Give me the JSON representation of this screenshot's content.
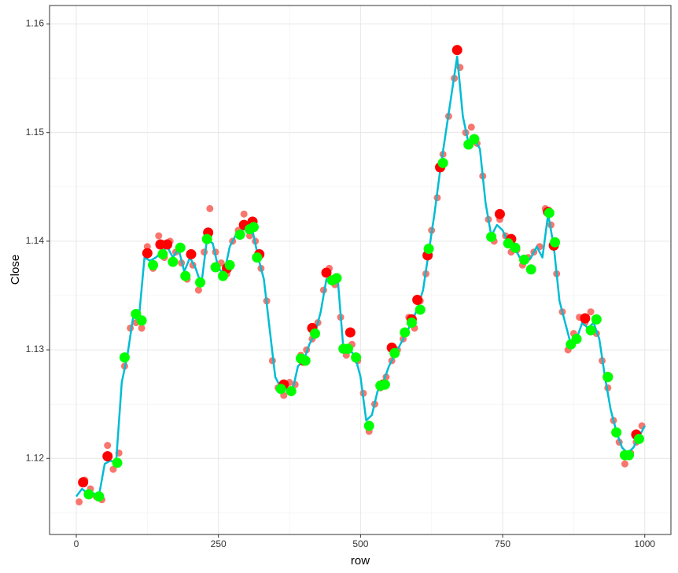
{
  "chart_data": {
    "type": "scatter",
    "xlabel": "row",
    "ylabel": "Close",
    "xlim": [
      -47,
      1046
    ],
    "ylim": [
      1.113,
      1.1617
    ],
    "xticks": [
      0,
      250,
      500,
      750,
      1000
    ],
    "yticks": [
      1.12,
      1.13,
      1.14,
      1.15,
      1.16
    ],
    "xminor": [
      125,
      375,
      625,
      875
    ],
    "yminor": [
      1.115,
      1.125,
      1.135,
      1.145,
      1.155
    ],
    "grid": true,
    "series": [
      {
        "mode": "points",
        "color": "#f8766d",
        "size": 4.5,
        "x": [
          5,
          15,
          25,
          35,
          45,
          55,
          65,
          75,
          85,
          95,
          105,
          115,
          125,
          135,
          145,
          155,
          165,
          175,
          185,
          195,
          205,
          215,
          225,
          235,
          245,
          255,
          265,
          275,
          285,
          295,
          305,
          315,
          325,
          335,
          345,
          355,
          365,
          375,
          385,
          395,
          405,
          415,
          425,
          435,
          445,
          455,
          465,
          475,
          485,
          495,
          505,
          515,
          525,
          535,
          545,
          555,
          565,
          575,
          585,
          595,
          605,
          615,
          625,
          635,
          645,
          655,
          665,
          675,
          685,
          695,
          705,
          715,
          725,
          735,
          745,
          755,
          765,
          775,
          785,
          795,
          805,
          815,
          825,
          835,
          845,
          855,
          865,
          875,
          885,
          895,
          905,
          915,
          925,
          935,
          945,
          955,
          965,
          975,
          985,
          995
        ],
        "values": [
          1.116,
          1.118,
          1.1172,
          1.1165,
          1.1162,
          1.1212,
          1.119,
          1.1205,
          1.1285,
          1.132,
          1.1325,
          1.132,
          1.1395,
          1.1375,
          1.1405,
          1.1385,
          1.14,
          1.139,
          1.138,
          1.1365,
          1.1378,
          1.1355,
          1.139,
          1.143,
          1.139,
          1.138,
          1.137,
          1.14,
          1.141,
          1.1425,
          1.1405,
          1.14,
          1.1375,
          1.1345,
          1.129,
          1.1265,
          1.1258,
          1.127,
          1.1268,
          1.1295,
          1.13,
          1.131,
          1.1325,
          1.1355,
          1.1375,
          1.136,
          1.133,
          1.1295,
          1.1305,
          1.129,
          1.126,
          1.1225,
          1.125,
          1.1265,
          1.1275,
          1.129,
          1.13,
          1.131,
          1.133,
          1.132,
          1.1345,
          1.137,
          1.141,
          1.144,
          1.148,
          1.1515,
          1.155,
          1.156,
          1.15,
          1.1505,
          1.149,
          1.146,
          1.142,
          1.14,
          1.142,
          1.1405,
          1.139,
          1.1392,
          1.1378,
          1.1385,
          1.139,
          1.1395,
          1.143,
          1.1415,
          1.137,
          1.1335,
          1.13,
          1.1315,
          1.133,
          1.1325,
          1.1335,
          1.1315,
          1.129,
          1.1265,
          1.1235,
          1.1215,
          1.1195,
          1.1205,
          1.1215,
          1.123
        ]
      },
      {
        "mode": "line",
        "color": "#00bcd4",
        "x": [
          0,
          10,
          20,
          30,
          40,
          50,
          60,
          70,
          80,
          90,
          100,
          110,
          120,
          130,
          140,
          150,
          160,
          170,
          180,
          190,
          200,
          210,
          220,
          230,
          240,
          250,
          260,
          270,
          280,
          290,
          300,
          310,
          320,
          330,
          340,
          350,
          360,
          370,
          380,
          390,
          400,
          410,
          420,
          430,
          440,
          450,
          460,
          470,
          480,
          490,
          500,
          510,
          520,
          530,
          540,
          550,
          560,
          570,
          580,
          590,
          600,
          610,
          620,
          630,
          640,
          650,
          660,
          670,
          680,
          690,
          700,
          710,
          720,
          730,
          740,
          750,
          760,
          770,
          780,
          790,
          800,
          810,
          820,
          830,
          840,
          850,
          860,
          870,
          880,
          890,
          900,
          910,
          920,
          930,
          940,
          950,
          960,
          970,
          980,
          990,
          1000
        ],
        "values": [
          1.1165,
          1.1172,
          1.1168,
          1.1168,
          1.1166,
          1.1195,
          1.1198,
          1.1196,
          1.127,
          1.1295,
          1.133,
          1.1328,
          1.1385,
          1.1382,
          1.1385,
          1.139,
          1.1395,
          1.1385,
          1.1393,
          1.1372,
          1.1385,
          1.1375,
          1.136,
          1.1402,
          1.1398,
          1.1375,
          1.137,
          1.1395,
          1.1405,
          1.141,
          1.1412,
          1.141,
          1.1385,
          1.1365,
          1.132,
          1.1275,
          1.1265,
          1.1265,
          1.1262,
          1.1285,
          1.129,
          1.1305,
          1.1315,
          1.1335,
          1.1365,
          1.1365,
          1.1365,
          1.13,
          1.13,
          1.1295,
          1.1275,
          1.1235,
          1.124,
          1.1262,
          1.127,
          1.1285,
          1.1295,
          1.1305,
          1.1315,
          1.1325,
          1.1338,
          1.1355,
          1.139,
          1.1425,
          1.1465,
          1.15,
          1.1535,
          1.157,
          1.1515,
          1.149,
          1.1495,
          1.1485,
          1.1435,
          1.1405,
          1.1415,
          1.141,
          1.1398,
          1.1395,
          1.1385,
          1.138,
          1.1385,
          1.1395,
          1.1385,
          1.1425,
          1.1395,
          1.1345,
          1.1325,
          1.1305,
          1.131,
          1.1325,
          1.132,
          1.1325,
          1.131,
          1.1275,
          1.1245,
          1.1225,
          1.121,
          1.1205,
          1.121,
          1.122,
          1.123
        ]
      },
      {
        "mode": "points",
        "color": "#ff0000",
        "size": 6.5,
        "x": [
          12,
          55,
          125,
          148,
          160,
          202,
          232,
          265,
          295,
          310,
          322,
          365,
          400,
          415,
          440,
          482,
          540,
          555,
          590,
          600,
          618,
          640,
          670,
          745,
          765,
          830,
          840,
          895,
          935,
          985
        ],
        "values": [
          1.1178,
          1.1202,
          1.1389,
          1.1397,
          1.1397,
          1.1388,
          1.1408,
          1.1375,
          1.1415,
          1.1418,
          1.1388,
          1.1268,
          1.129,
          1.132,
          1.1371,
          1.1316,
          1.1268,
          1.1302,
          1.1328,
          1.1346,
          1.1387,
          1.1468,
          1.1576,
          1.1425,
          1.1402,
          1.1427,
          1.1396,
          1.1329,
          1.1275,
          1.1222
        ]
      },
      {
        "mode": "points",
        "color": "#00ff00",
        "size": 6.5,
        "x": [
          22,
          40,
          72,
          85,
          105,
          115,
          135,
          152,
          170,
          183,
          192,
          218,
          230,
          245,
          258,
          270,
          288,
          305,
          312,
          318,
          360,
          378,
          395,
          403,
          420,
          450,
          458,
          470,
          478,
          492,
          515,
          535,
          543,
          560,
          578,
          590,
          605,
          620,
          645,
          690,
          700,
          730,
          760,
          772,
          788,
          800,
          832,
          842,
          870,
          880,
          905,
          915,
          935,
          950,
          965,
          972,
          990
        ],
        "values": [
          1.1167,
          1.1165,
          1.1196,
          1.1293,
          1.1333,
          1.1327,
          1.1378,
          1.1388,
          1.1381,
          1.1394,
          1.1368,
          1.1362,
          1.1402,
          1.1376,
          1.1368,
          1.1378,
          1.1406,
          1.1411,
          1.1413,
          1.1385,
          1.1264,
          1.1262,
          1.1292,
          1.129,
          1.1315,
          1.1364,
          1.1366,
          1.1301,
          1.1301,
          1.1293,
          1.123,
          1.1267,
          1.1268,
          1.1297,
          1.1316,
          1.1325,
          1.1337,
          1.1393,
          1.1472,
          1.1489,
          1.1494,
          1.1404,
          1.1398,
          1.1394,
          1.1383,
          1.1374,
          1.1426,
          1.1399,
          1.1305,
          1.131,
          1.1318,
          1.1328,
          1.1275,
          1.1224,
          1.1203,
          1.1203,
          1.1218
        ]
      }
    ]
  }
}
